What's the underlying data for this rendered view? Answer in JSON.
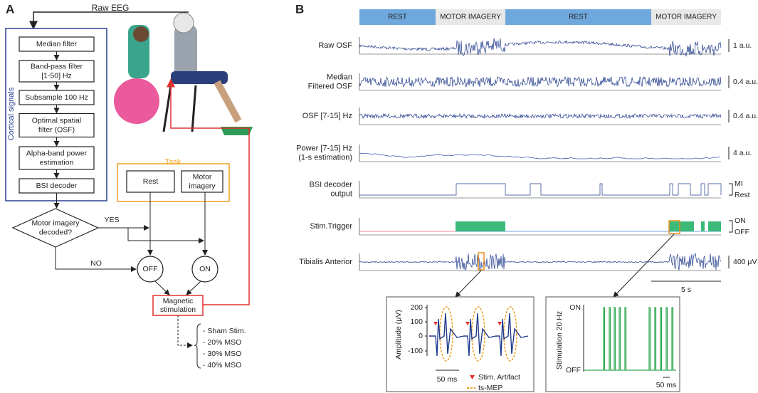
{
  "panel_labels": [
    "A",
    "B"
  ],
  "flowchart": {
    "input": "Raw EEG",
    "group": "Cortical signals",
    "steps": [
      [
        "Median filter"
      ],
      [
        "Band-pass filter",
        "[1-50] Hz"
      ],
      [
        "Subsample 100 Hz"
      ],
      [
        "Optimal spatial",
        "filter (OSF)"
      ],
      [
        "Alpha-band power",
        "estimation"
      ],
      [
        "BSI decoder"
      ]
    ],
    "task": {
      "title": "Task",
      "options": [
        [
          "Rest"
        ],
        [
          "Motor",
          "imagery"
        ]
      ]
    },
    "decision": [
      "Motor imagery",
      "decoded?"
    ],
    "yes": "YES",
    "no": "NO",
    "off": "OFF",
    "on": "ON",
    "stimulation": [
      "Magnetic",
      "stimulation"
    ],
    "conditions": [
      "- Sham Stim.",
      "- 20% MSO",
      "- 30% MSO",
      "- 40% MSO"
    ]
  },
  "recording": {
    "phases": [
      "REST",
      "MOTOR IMAGERY",
      "REST",
      "MOTOR IMAGERY"
    ],
    "traces": [
      {
        "label": [
          "Raw OSF"
        ],
        "scale": "1 a.u."
      },
      {
        "label": [
          "Median",
          "Filtered OSF"
        ],
        "scale": "0.4 a.u."
      },
      {
        "label": [
          "OSF [7-15] Hz"
        ],
        "scale": "0.4 a.u."
      },
      {
        "label": [
          "Power [7-15] Hz",
          "(1-s estimation)"
        ],
        "scale": "4 a.u."
      },
      {
        "label": [
          "BSI decoder",
          "output"
        ],
        "levels": [
          "MI",
          "Rest"
        ]
      },
      {
        "label": [
          "Stim.Trigger"
        ],
        "levels": [
          "ON",
          "OFF"
        ]
      },
      {
        "label": [
          "Tibialis Anterior"
        ],
        "scale": "400 μV"
      }
    ],
    "time_scale": "5 s"
  },
  "inset_mep": {
    "y_label": "Amplitude (μV)",
    "y_ticks": [
      "200",
      "100",
      "0",
      "-100"
    ],
    "time_scale": "50 ms",
    "legend": [
      "Stim. Artifact",
      "ts-MEP"
    ]
  },
  "inset_stim": {
    "y_label": "Stimulation 20 Hz",
    "y_ticks": [
      "ON",
      "OFF"
    ],
    "time_scale": "50 ms"
  }
}
